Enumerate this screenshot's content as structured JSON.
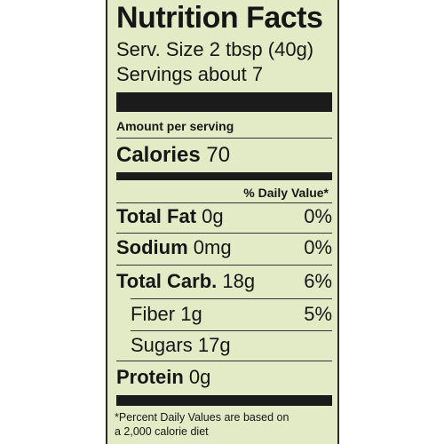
{
  "label": {
    "title": "Nutrition Facts",
    "serving_size": "Serv. Size 2 tbsp (40g)",
    "servings": "Servings about 7",
    "amount_per_serving": "Amount per serving",
    "calories_label": "Calories",
    "calories_value": "70",
    "daily_value_header": "% Daily Value*",
    "nutrients": [
      {
        "name": "Total Fat",
        "amount": "0g",
        "dv": "0%"
      },
      {
        "name": "Sodium",
        "amount": "0mg",
        "dv": "0%"
      },
      {
        "name": "Total Carb.",
        "amount": "18g",
        "dv": "6%"
      },
      {
        "name": "Fiber",
        "amount": "1g",
        "dv": "5%"
      },
      {
        "name": "Sugars",
        "amount": "17g",
        "dv": ""
      },
      {
        "name": "Protein",
        "amount": "0g",
        "dv": ""
      }
    ],
    "footnote_line1": "*Percent Daily Values are based on",
    "footnote_line2": "a 2,000 calorie diet",
    "colors": {
      "background": "#e3ebc6",
      "ink": "#161616"
    }
  }
}
